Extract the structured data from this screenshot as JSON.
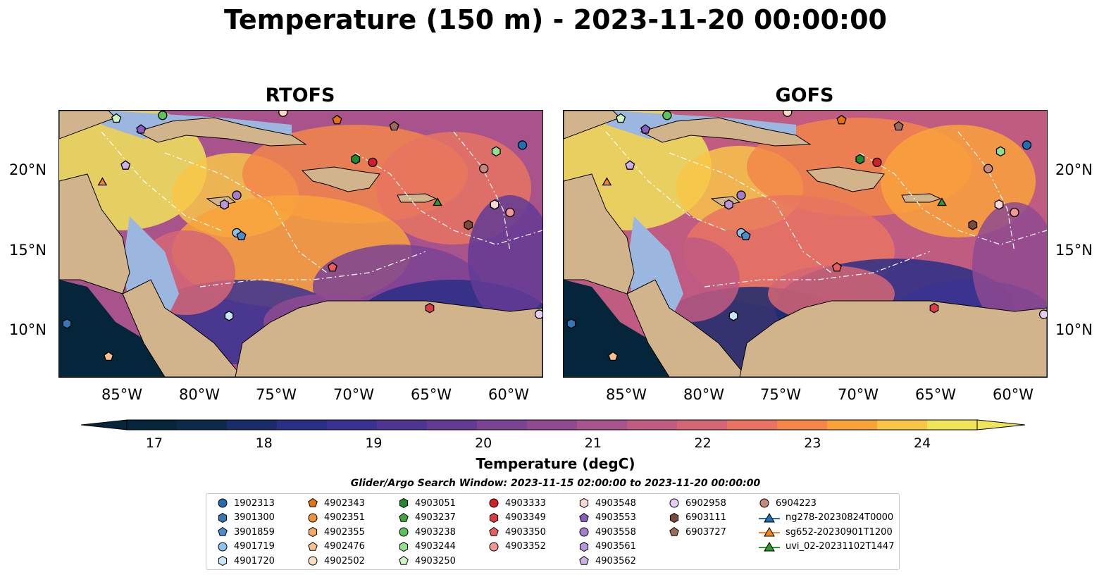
{
  "title": "Temperature (150 m) - 2023-11-20 00:00:00",
  "panels": [
    {
      "title": "RTOFS"
    },
    {
      "title": "GOFS"
    }
  ],
  "map": {
    "lat_ticks": [
      "20°N",
      "15°N",
      "10°N"
    ],
    "lon_ticks": [
      "85°W",
      "80°W",
      "75°W",
      "70°W",
      "65°W",
      "60°W"
    ],
    "extent": {
      "lon": [
        -89.5,
        -58.2
      ],
      "lat": [
        7,
        24
      ]
    },
    "land_color": "#d2b48c",
    "shelf_color": "#9bb7e0"
  },
  "colorbar": {
    "label": "Temperature (degC)",
    "ticks": [
      "17",
      "18",
      "19",
      "20",
      "21",
      "22",
      "23",
      "24"
    ],
    "range": [
      16.75,
      24.5
    ],
    "colors": [
      "#05263a",
      "#0c2a4c",
      "#1b2c6c",
      "#2a2f86",
      "#3a3290",
      "#4e3594",
      "#633b95",
      "#7a4394",
      "#8f4a90",
      "#a8538b",
      "#c05b82",
      "#d56676",
      "#e77461",
      "#f38649",
      "#f9a23c",
      "#f8c548",
      "#f0e45b"
    ]
  },
  "legend": {
    "title": "Glider/Argo Search Window: 2023-11-15 02:00:00 to 2023-11-20 00:00:00",
    "items": [
      {
        "name": "1902313",
        "color": "#1f6fb4",
        "shape": "circle"
      },
      {
        "name": "3901300",
        "color": "#3478b8",
        "shape": "hexagon"
      },
      {
        "name": "3901859",
        "color": "#4b8cc8",
        "shape": "pentagon"
      },
      {
        "name": "4901719",
        "color": "#8cc3ec",
        "shape": "circle"
      },
      {
        "name": "4901720",
        "color": "#c7e6f8",
        "shape": "hexagon"
      },
      {
        "name": "4902343",
        "color": "#e8700f",
        "shape": "pentagon"
      },
      {
        "name": "4902351",
        "color": "#f6923a",
        "shape": "circle"
      },
      {
        "name": "4902355",
        "color": "#f8a660",
        "shape": "hexagon"
      },
      {
        "name": "4902476",
        "color": "#fbc08f",
        "shape": "pentagon"
      },
      {
        "name": "4902502",
        "color": "#fddcc0",
        "shape": "circle"
      },
      {
        "name": "4903051",
        "color": "#1f8a2a",
        "shape": "hexagon"
      },
      {
        "name": "4903237",
        "color": "#3ea63b",
        "shape": "pentagon"
      },
      {
        "name": "4903238",
        "color": "#5cc35a",
        "shape": "circle"
      },
      {
        "name": "4903244",
        "color": "#94df8c",
        "shape": "hexagon"
      },
      {
        "name": "4903250",
        "color": "#cbf5c2",
        "shape": "pentagon"
      },
      {
        "name": "4903333",
        "color": "#d21f26",
        "shape": "circle"
      },
      {
        "name": "4903349",
        "color": "#de3a3f",
        "shape": "hexagon"
      },
      {
        "name": "4903350",
        "color": "#e95c60",
        "shape": "pentagon"
      },
      {
        "name": "4903352",
        "color": "#f29795",
        "shape": "circle"
      },
      {
        "name": "4903548",
        "color": "#fbd8d5",
        "shape": "hexagon"
      },
      {
        "name": "4903553",
        "color": "#8b5cbf",
        "shape": "pentagon"
      },
      {
        "name": "4903558",
        "color": "#a57dd0",
        "shape": "circle"
      },
      {
        "name": "4903561",
        "color": "#b898da",
        "shape": "hexagon"
      },
      {
        "name": "4903562",
        "color": "#cbb0ea",
        "shape": "pentagon"
      },
      {
        "name": "6902958",
        "color": "#e6cdf5",
        "shape": "circle"
      },
      {
        "name": "6903111",
        "color": "#7a4a3a",
        "shape": "hexagon"
      },
      {
        "name": "6903727",
        "color": "#9c6a58",
        "shape": "pentagon"
      },
      {
        "name": "6904223",
        "color": "#c48a78",
        "shape": "circle"
      },
      {
        "name": "ng278-20230824T0000",
        "color": "#1f6fb4",
        "shape": "triangle"
      },
      {
        "name": "sg652-20230901T1200",
        "color": "#f58518",
        "shape": "triangle"
      },
      {
        "name": "uvi_02-20231102T1447",
        "color": "#2a9a2a",
        "shape": "triangle"
      }
    ]
  },
  "markers": [
    {
      "id": "1902313",
      "lon": -59.5,
      "lat": 21.8
    },
    {
      "id": "3901300",
      "lon": -89.0,
      "lat": 10.4
    },
    {
      "id": "4901719",
      "lon": -78.0,
      "lat": 16.2
    },
    {
      "id": "3901859",
      "lon": -77.7,
      "lat": 16.0
    },
    {
      "id": "4901720",
      "lon": -78.5,
      "lat": 10.9
    },
    {
      "id": "4902343",
      "lon": -71.5,
      "lat": 23.4
    },
    {
      "id": "4902476",
      "lon": -86.3,
      "lat": 8.3
    },
    {
      "id": "4903238",
      "lon": -82.8,
      "lat": 23.7
    },
    {
      "id": "4903250",
      "lon": -85.8,
      "lat": 23.5
    },
    {
      "id": "4903051",
      "lon": -70.3,
      "lat": 20.9
    },
    {
      "id": "4903244",
      "lon": -61.2,
      "lat": 21.4
    },
    {
      "id": "4903333",
      "lon": -69.2,
      "lat": 20.7
    },
    {
      "id": "4903349",
      "lon": -65.5,
      "lat": 11.4
    },
    {
      "id": "4903350",
      "lon": -71.8,
      "lat": 14.0
    },
    {
      "id": "4903352",
      "lon": -60.3,
      "lat": 17.5
    },
    {
      "id": "4903548",
      "lon": -61.3,
      "lat": 18.0
    },
    {
      "id": "4903553",
      "lon": -84.2,
      "lat": 22.8
    },
    {
      "id": "4903558",
      "lon": -78.0,
      "lat": 18.6
    },
    {
      "id": "4903561",
      "lon": -78.8,
      "lat": 18.0
    },
    {
      "id": "4903562",
      "lon": -85.2,
      "lat": 20.5
    },
    {
      "id": "6902958",
      "lon": -58.4,
      "lat": 11.0
    },
    {
      "id": "6903111",
      "lon": -63.0,
      "lat": 16.7
    },
    {
      "id": "6903727",
      "lon": -67.8,
      "lat": 23.0
    },
    {
      "id": "6904223",
      "lon": -62.0,
      "lat": 20.3
    },
    {
      "id": "4902502",
      "lon": -75.0,
      "lat": 23.9
    },
    {
      "id": "sg652-20230901T1200",
      "lon": -86.7,
      "lat": 19.4
    },
    {
      "id": "uvi_02-20231102T1447",
      "lon": -65.0,
      "lat": 18.1
    }
  ]
}
